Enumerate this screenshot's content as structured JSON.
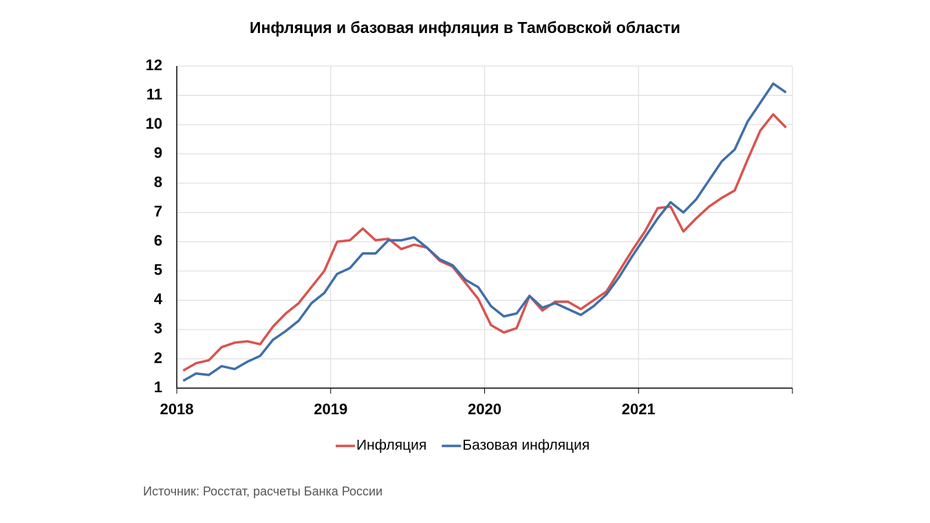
{
  "chart_data": {
    "type": "line",
    "title": "Инфляция и базовая инфляция в Тамбовской области",
    "categories": [
      "2018",
      null,
      null,
      null,
      null,
      null,
      null,
      null,
      null,
      null,
      null,
      null,
      "2019",
      null,
      null,
      null,
      null,
      null,
      null,
      null,
      null,
      null,
      null,
      null,
      "2020",
      null,
      null,
      null,
      null,
      null,
      null,
      null,
      null,
      null,
      null,
      null,
      "2021",
      null,
      null,
      null,
      null,
      null,
      null,
      null,
      null,
      null,
      null,
      null
    ],
    "series": [
      {
        "name": "Инфляция",
        "color": "#d9534f",
        "values": [
          1.6,
          1.85,
          1.95,
          2.4,
          2.55,
          2.6,
          2.5,
          3.1,
          3.55,
          3.9,
          4.45,
          5.0,
          6.0,
          6.05,
          6.45,
          6.05,
          6.1,
          5.75,
          5.9,
          5.8,
          5.35,
          5.15,
          4.6,
          4.05,
          3.15,
          2.9,
          3.05,
          4.15,
          3.65,
          3.95,
          3.95,
          3.7,
          4.0,
          4.3,
          5.0,
          5.7,
          6.35,
          7.15,
          7.2,
          6.35,
          6.8,
          7.2,
          7.5,
          7.75,
          8.8,
          9.8,
          10.35,
          9.9
        ]
      },
      {
        "name": "Базовая инфляция",
        "color": "#3f6fa8",
        "values": [
          1.25,
          1.5,
          1.45,
          1.75,
          1.65,
          1.9,
          2.1,
          2.65,
          2.95,
          3.3,
          3.9,
          4.25,
          4.9,
          5.1,
          5.6,
          5.6,
          6.05,
          6.05,
          6.15,
          5.8,
          5.4,
          5.2,
          4.7,
          4.45,
          3.8,
          3.45,
          3.55,
          4.15,
          3.75,
          3.9,
          3.7,
          3.5,
          3.8,
          4.2,
          4.8,
          5.5,
          6.15,
          6.8,
          7.35,
          7.0,
          7.45,
          8.1,
          8.75,
          9.15,
          10.1,
          10.75,
          11.4,
          11.1
        ]
      }
    ],
    "ylim": [
      1,
      12
    ],
    "yticks": [
      1,
      2,
      3,
      4,
      5,
      6,
      7,
      8,
      9,
      10,
      11,
      12
    ],
    "grid": true,
    "legend": "bottom"
  },
  "source": "Источник: Росстат, расчеты Банка России"
}
